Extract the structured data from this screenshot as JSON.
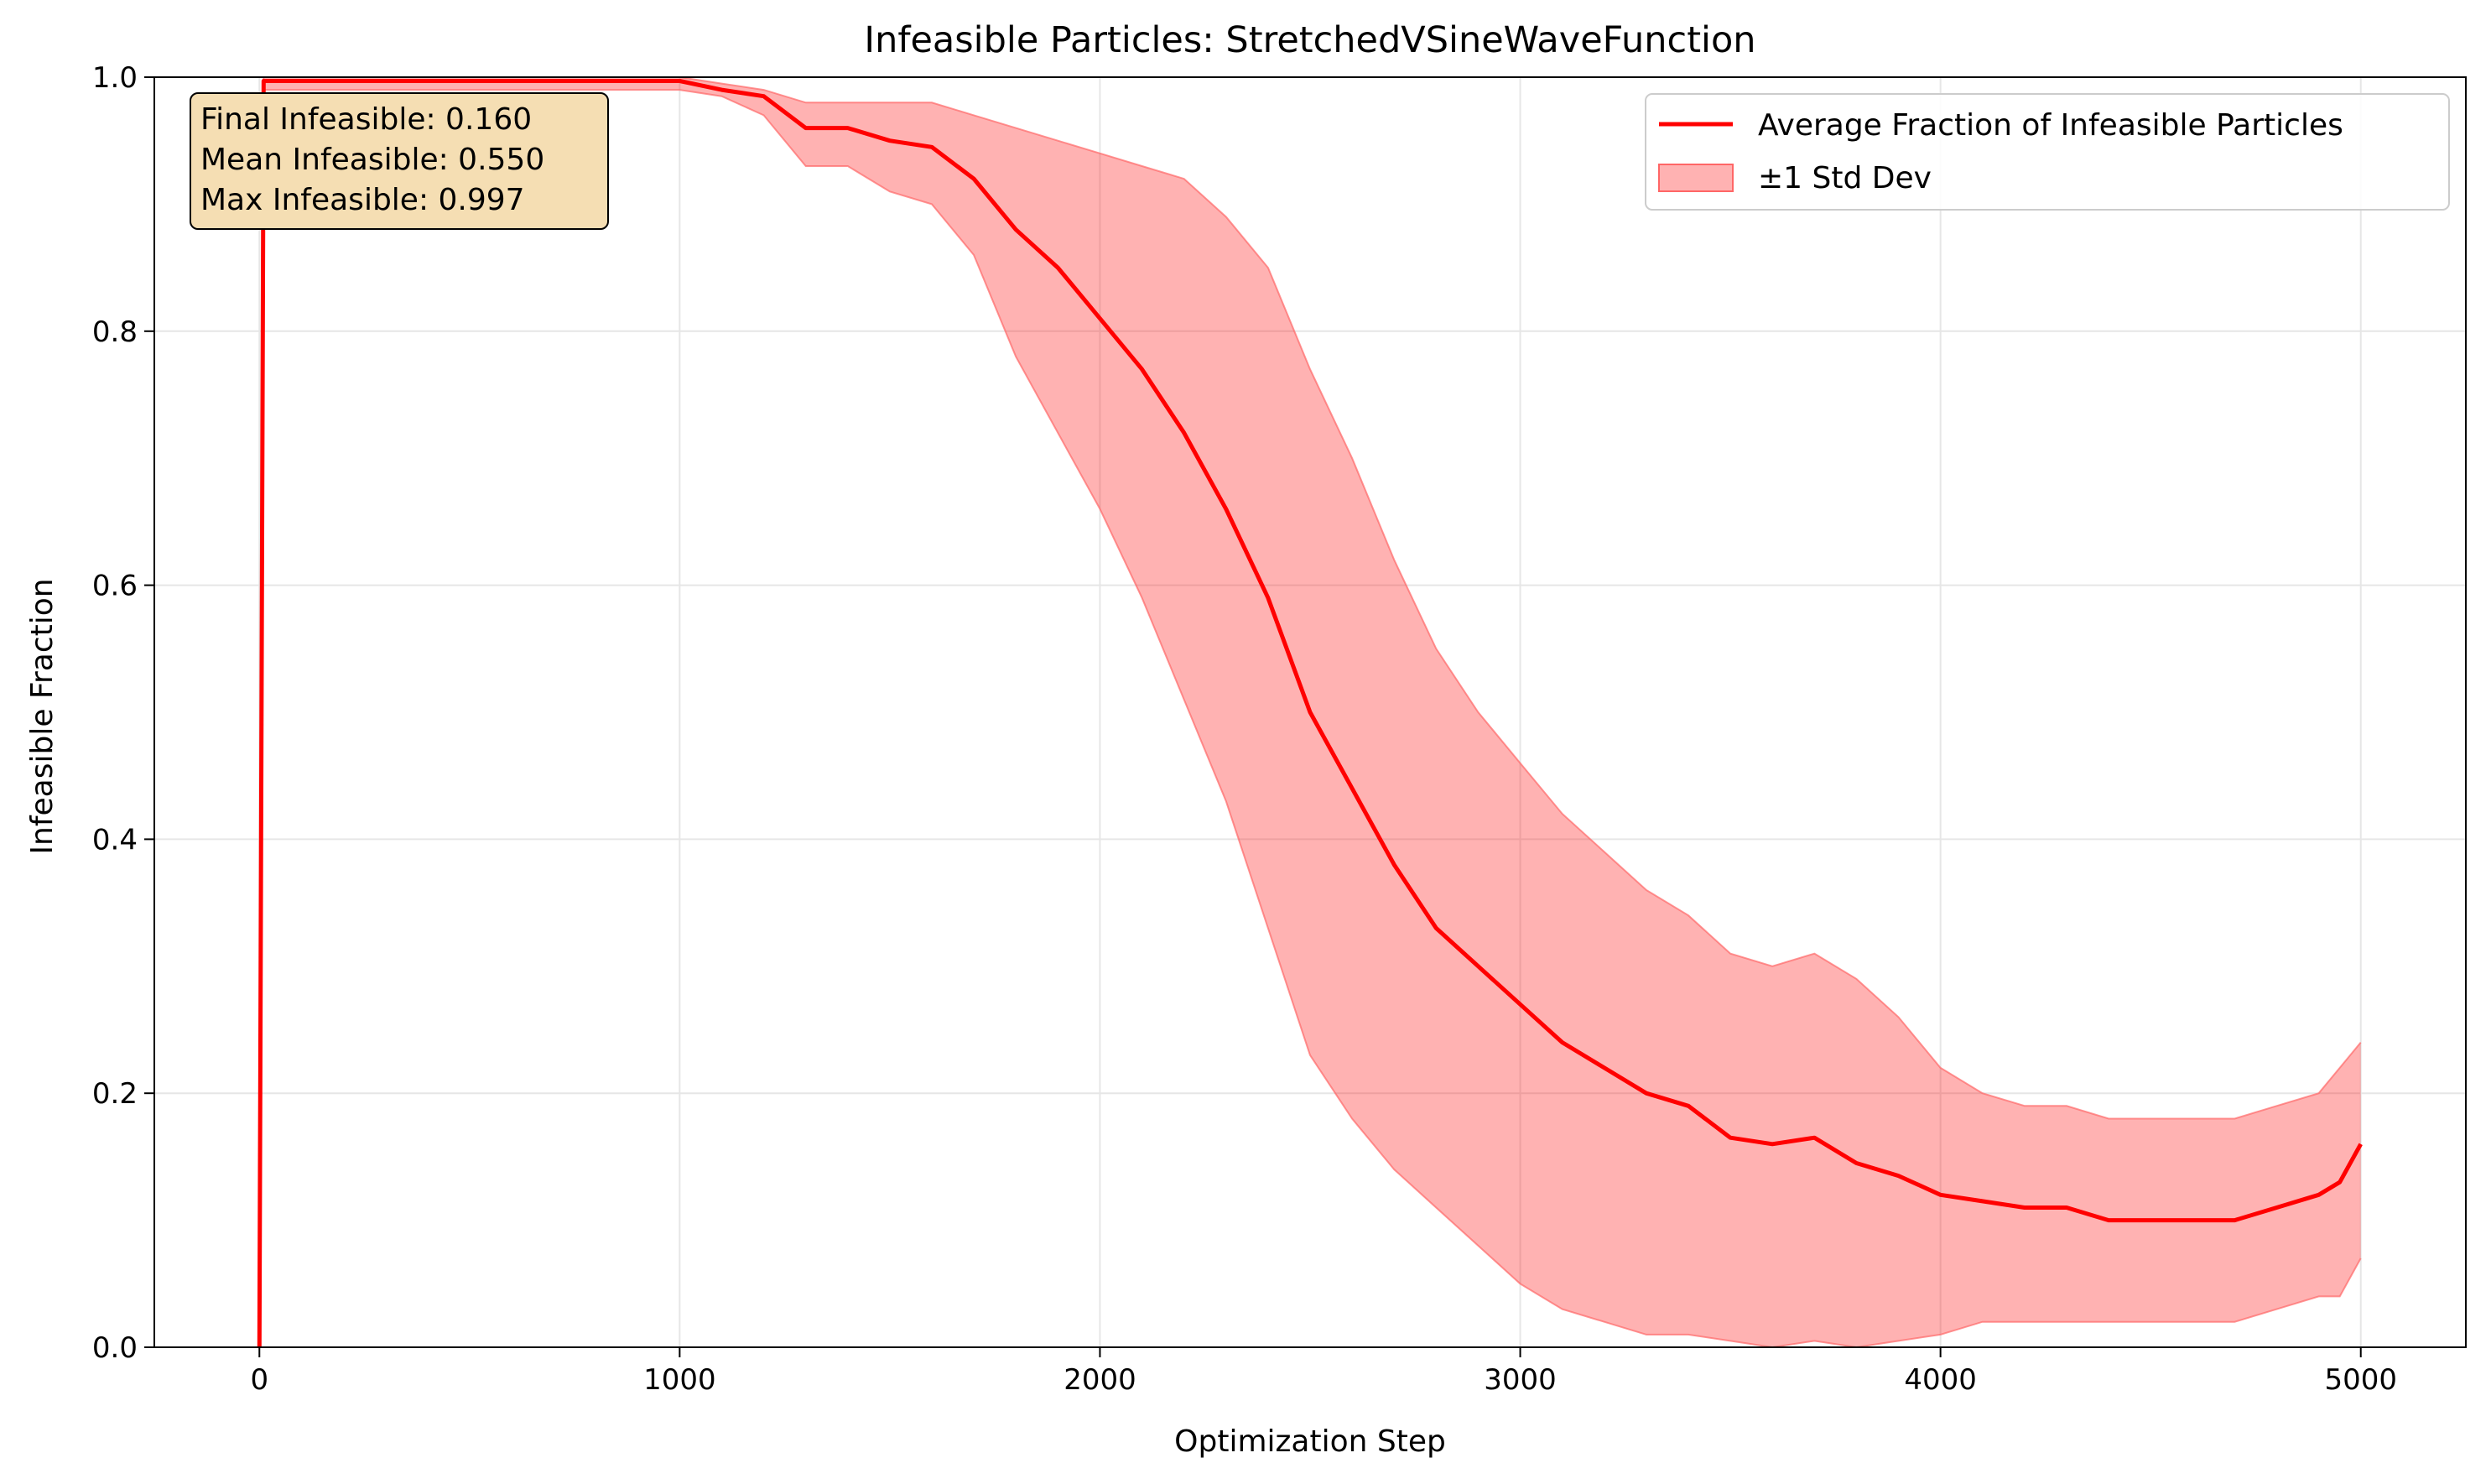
{
  "chart_data": {
    "type": "line",
    "title": "Infeasible Particles: StretchedVSineWaveFunction",
    "xlabel": "Optimization Step",
    "ylabel": "Infeasible Fraction",
    "xlim": [
      -250,
      5250
    ],
    "ylim": [
      0.0,
      1.0
    ],
    "xticks": [
      0,
      1000,
      2000,
      3000,
      4000,
      5000
    ],
    "xtick_labels": [
      "0",
      "1000",
      "2000",
      "3000",
      "4000",
      "5000"
    ],
    "yticks": [
      0.0,
      0.2,
      0.4,
      0.6,
      0.8,
      1.0
    ],
    "ytick_labels": [
      "0.0",
      "0.2",
      "0.4",
      "0.6",
      "0.8",
      "1.0"
    ],
    "grid": true,
    "legend_position": "top-right",
    "x": [
      0,
      10,
      20,
      100,
      500,
      1000,
      1100,
      1200,
      1300,
      1400,
      1500,
      1600,
      1700,
      1800,
      1900,
      2000,
      2100,
      2200,
      2300,
      2400,
      2500,
      2600,
      2700,
      2800,
      2900,
      3000,
      3100,
      3200,
      3300,
      3400,
      3500,
      3600,
      3700,
      3800,
      3900,
      4000,
      4100,
      4200,
      4300,
      4400,
      4500,
      4600,
      4700,
      4800,
      4900,
      4950,
      5000
    ],
    "series": [
      {
        "name": "Average Fraction of Infeasible Particles",
        "color": "#ff0000",
        "values": [
          0.0,
          0.997,
          0.997,
          0.997,
          0.997,
          0.997,
          0.99,
          0.985,
          0.96,
          0.96,
          0.95,
          0.945,
          0.92,
          0.88,
          0.85,
          0.81,
          0.77,
          0.72,
          0.66,
          0.59,
          0.5,
          0.44,
          0.38,
          0.33,
          0.3,
          0.27,
          0.24,
          0.22,
          0.2,
          0.19,
          0.165,
          0.16,
          0.165,
          0.145,
          0.135,
          0.12,
          0.115,
          0.11,
          0.11,
          0.1,
          0.1,
          0.1,
          0.1,
          0.11,
          0.12,
          0.13,
          0.16
        ]
      },
      {
        "name": "±1 Std Dev",
        "color": "#ff6666",
        "upper": [
          0.0,
          1.0,
          1.0,
          1.0,
          1.0,
          1.0,
          0.995,
          0.99,
          0.98,
          0.98,
          0.98,
          0.98,
          0.97,
          0.96,
          0.95,
          0.94,
          0.93,
          0.92,
          0.89,
          0.85,
          0.77,
          0.7,
          0.62,
          0.55,
          0.5,
          0.46,
          0.42,
          0.39,
          0.36,
          0.34,
          0.31,
          0.3,
          0.31,
          0.29,
          0.26,
          0.22,
          0.2,
          0.19,
          0.19,
          0.18,
          0.18,
          0.18,
          0.18,
          0.19,
          0.2,
          0.22,
          0.24
        ],
        "lower": [
          0.0,
          0.99,
          0.99,
          0.99,
          0.99,
          0.99,
          0.985,
          0.97,
          0.93,
          0.93,
          0.91,
          0.9,
          0.86,
          0.78,
          0.72,
          0.66,
          0.59,
          0.51,
          0.43,
          0.33,
          0.23,
          0.18,
          0.14,
          0.11,
          0.08,
          0.05,
          0.03,
          0.02,
          0.01,
          0.01,
          0.005,
          0.0,
          0.005,
          0.0,
          0.005,
          0.01,
          0.02,
          0.02,
          0.02,
          0.02,
          0.02,
          0.02,
          0.02,
          0.03,
          0.04,
          0.04,
          0.07
        ]
      }
    ],
    "annotation": {
      "lines": [
        "Final Infeasible: 0.160",
        "Mean Infeasible: 0.550",
        "Max Infeasible: 0.997"
      ],
      "background": "#f5deb3",
      "position": "top-left"
    },
    "legend": {
      "line_label": "Average Fraction of Infeasible Particles",
      "band_label": "±1 Std Dev"
    }
  }
}
